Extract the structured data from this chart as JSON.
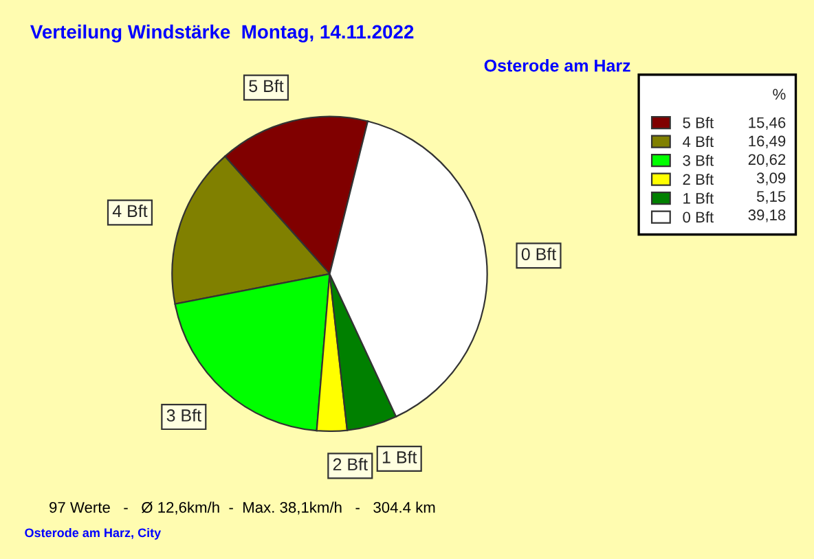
{
  "chart_data": {
    "type": "pie",
    "title": "Verteilung Windstärke  Montag, 14.11.2022",
    "subtitle": "Osterode am Harz",
    "categories": [
      "5 Bft",
      "4 Bft",
      "3 Bft",
      "2 Bft",
      "1 Bft",
      "0 Bft"
    ],
    "values": [
      15.46,
      16.49,
      20.62,
      3.09,
      5.15,
      39.18
    ],
    "value_labels": [
      "15,46",
      "16,49",
      "20,62",
      "3,09",
      "5,15",
      "39,18"
    ],
    "colors": [
      "#800000",
      "#808000",
      "#00ff00",
      "#ffff00",
      "#008000",
      "#ffffff"
    ],
    "legend_title": "%",
    "legend": "top right",
    "annotations": [
      "97 Werte   -   Ø 12,6km/h  -  Max. 38,1km/h   -   304.4 km",
      "Osterode am Harz, City"
    ]
  }
}
